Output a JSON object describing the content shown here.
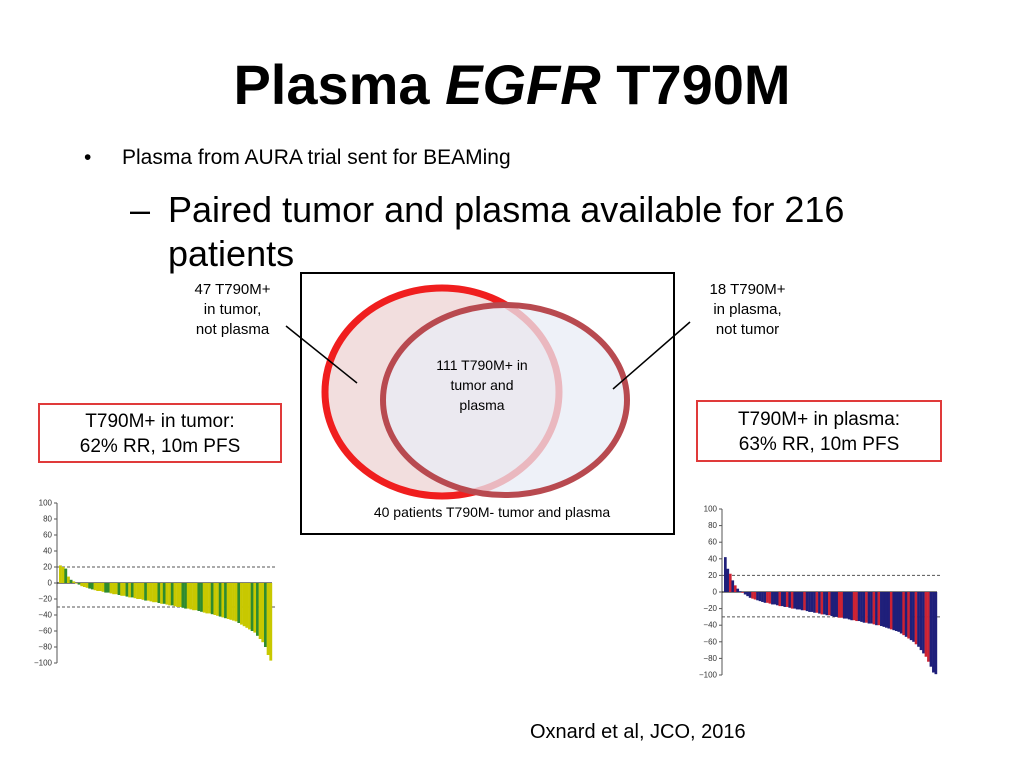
{
  "slide": {
    "title_prefix": "Plasma ",
    "title_italic": "EGFR",
    "title_suffix": " T790M",
    "bullet_symbol": "•",
    "bullet1": "Plasma from AURA trial sent for BEAMing",
    "dash_symbol": "–",
    "sub1_line1": "Paired tumor and plasma available for 216",
    "sub1_line2": "patients",
    "citation": "Oxnard et al, JCO, 2016"
  },
  "venn": {
    "tumor_only": [
      "47 T790M+",
      "in tumor,",
      "not plasma"
    ],
    "plasma_only": [
      "18 T790M+",
      "in plasma,",
      "not tumor"
    ],
    "both": [
      "111 T790M+ in",
      "tumor and",
      "plasma"
    ],
    "neither": "40 patients T790M- tumor and plasma",
    "colors": {
      "tumor_ring": "#f01e1e",
      "tumor_fill": "#f2dede",
      "plasma_ring": "#b84a50",
      "plasma_fill": "#e8ecf6",
      "overlap_fill": "#e4dde8"
    }
  },
  "boxes": {
    "tumor": [
      "T790M+ in tumor:",
      "62% RR, 10m PFS"
    ],
    "plasma": [
      "T790M+ in plasma:",
      "63% RR, 10m PFS"
    ]
  },
  "chart_data": [
    {
      "type": "bar",
      "title": "",
      "xlabel": "",
      "ylabel": "",
      "ylim": [
        -100,
        100
      ],
      "yticks": [
        "100",
        "80",
        "60",
        "40",
        "20",
        "0",
        "−20",
        "−40",
        "−60",
        "−80",
        "−100"
      ],
      "reference_lines": [
        20,
        -30
      ],
      "colors": [
        "#c8c800",
        "#2e8b2e"
      ],
      "values": [
        22,
        20,
        18,
        8,
        4,
        2,
        0,
        -2,
        -4,
        -5,
        -6,
        -7,
        -8,
        -9,
        -10,
        -10,
        -11,
        -12,
        -12,
        -13,
        -14,
        -14,
        -15,
        -16,
        -16,
        -17,
        -18,
        -18,
        -19,
        -20,
        -20,
        -21,
        -22,
        -22,
        -23,
        -24,
        -24,
        -25,
        -26,
        -26,
        -27,
        -28,
        -28,
        -29,
        -30,
        -30,
        -31,
        -32,
        -32,
        -33,
        -34,
        -34,
        -35,
        -36,
        -37,
        -38,
        -38,
        -39,
        -40,
        -41,
        -42,
        -43,
        -44,
        -45,
        -46,
        -47,
        -48,
        -50,
        -52,
        -54,
        -56,
        -58,
        -60,
        -62,
        -66,
        -70,
        -74,
        -80,
        -90,
        -97
      ]
    },
    {
      "type": "bar",
      "title": "",
      "xlabel": "",
      "ylabel": "",
      "ylim": [
        -100,
        100
      ],
      "yticks": [
        "100",
        "80",
        "60",
        "40",
        "20",
        "0",
        "−20",
        "−40",
        "−60",
        "−80",
        "−100"
      ],
      "reference_lines": [
        20,
        -30
      ],
      "colors": [
        "#1f1f7a",
        "#cc2233"
      ],
      "values": [
        42,
        28,
        22,
        14,
        8,
        4,
        1,
        -1,
        -3,
        -5,
        -7,
        -8,
        -9,
        -10,
        -11,
        -12,
        -13,
        -13,
        -14,
        -15,
        -15,
        -16,
        -17,
        -17,
        -18,
        -18,
        -19,
        -20,
        -20,
        -21,
        -21,
        -22,
        -22,
        -23,
        -24,
        -24,
        -25,
        -25,
        -26,
        -27,
        -27,
        -28,
        -28,
        -29,
        -30,
        -30,
        -31,
        -31,
        -32,
        -32,
        -33,
        -34,
        -34,
        -35,
        -35,
        -36,
        -37,
        -37,
        -38,
        -38,
        -39,
        -40,
        -40,
        -41,
        -42,
        -43,
        -44,
        -45,
        -46,
        -47,
        -48,
        -50,
        -52,
        -54,
        -56,
        -58,
        -60,
        -63,
        -66,
        -70,
        -74,
        -78,
        -84,
        -90,
        -97,
        -99
      ]
    }
  ]
}
